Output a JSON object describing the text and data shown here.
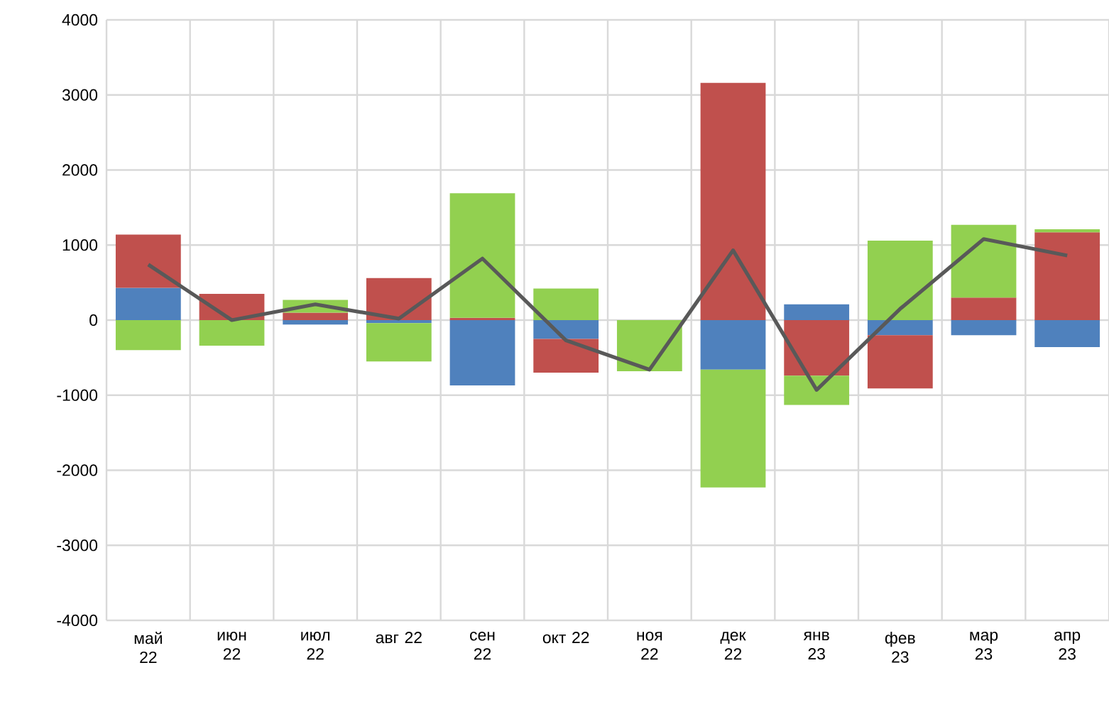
{
  "chart_data": {
    "type": "bar",
    "stacked": true,
    "grid": true,
    "marker": "none",
    "categories": [
      "май 22",
      "июн 22",
      "июл 22",
      "авг 22",
      "сен 22",
      "окт 22",
      "ноя 22",
      "дек 22",
      "янв 23",
      "фев 23",
      "мар 23",
      "апр 23"
    ],
    "ylim": [
      -4000,
      4000
    ],
    "yticks": [
      -4000,
      -3000,
      -2000,
      -1000,
      0,
      1000,
      2000,
      3000,
      4000
    ],
    "series": [
      {
        "color": "#4f81bd",
        "values": [
          430,
          null,
          -60,
          -40,
          -870,
          -250,
          null,
          -660,
          210,
          -200,
          -200,
          -360
        ]
      },
      {
        "color": "#c0504d",
        "values": [
          710,
          350,
          100,
          560,
          30,
          -450,
          null,
          3160,
          -740,
          -710,
          300,
          1170
        ]
      },
      {
        "color": "#92d050",
        "values": [
          -400,
          -340,
          170,
          -510,
          1660,
          420,
          -680,
          -1570,
          -390,
          1060,
          970,
          40
        ]
      },
      {
        "type": "line",
        "color": "#595959",
        "line_style": "solid",
        "values": [
          740,
          0,
          210,
          20,
          820,
          -270,
          -660,
          930,
          -930,
          150,
          1080,
          860
        ]
      }
    ]
  }
}
